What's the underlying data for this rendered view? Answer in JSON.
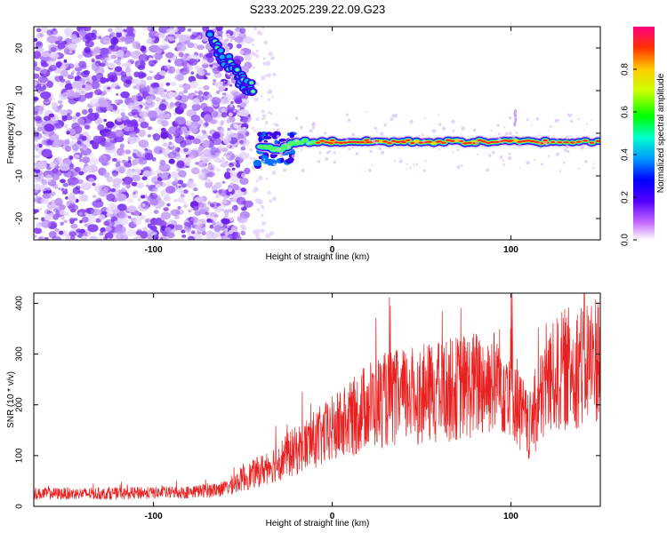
{
  "title": "S233.2025.239.22.09.G23",
  "chart_data": [
    {
      "type": "heatmap",
      "xlabel": "Height of straight line (km)",
      "ylabel": "Frequency (Hz)",
      "xlim": [
        -167,
        150
      ],
      "ylim": [
        -25,
        25
      ],
      "xticks": [
        -100,
        0,
        100
      ],
      "yticks": [
        20,
        10,
        0,
        -10,
        -20
      ],
      "colorbar": {
        "label": "Normalized spectral amplitude",
        "range": [
          0,
          1
        ],
        "ticks": [
          "0.0",
          "0.2",
          "0.4",
          "0.6",
          "0.8"
        ],
        "tick_values": [
          0,
          0.2,
          0.4,
          0.6,
          0.8
        ]
      },
      "features": {
        "noise_region_x": [
          -167,
          -55
        ],
        "diagonal_track": [
          [
            -68,
            23
          ],
          [
            -62,
            18
          ],
          [
            -55,
            15
          ],
          [
            -50,
            12
          ],
          [
            -44,
            10
          ]
        ],
        "main_track": [
          [
            -40,
            -3
          ],
          [
            -30,
            -4
          ],
          [
            -20,
            -2
          ],
          [
            0,
            -2
          ],
          [
            20,
            -2
          ],
          [
            40,
            -2
          ],
          [
            60,
            -2
          ],
          [
            80,
            -2
          ],
          [
            100,
            -2
          ],
          [
            120,
            -2
          ],
          [
            150,
            -2
          ]
        ]
      }
    },
    {
      "type": "line",
      "xlabel": "Height of straight line (km)",
      "ylabel": "SNR (10 * v/v)",
      "xlim": [
        -167,
        150
      ],
      "ylim": [
        0,
        420
      ],
      "xticks": [
        -100,
        0,
        100
      ],
      "yticks": [
        0,
        100,
        200,
        300,
        400
      ],
      "series": [
        {
          "name": "SNR",
          "color": "#e82020",
          "envelope": [
            [
              -167,
              25
            ],
            [
              -120,
              25
            ],
            [
              -80,
              28
            ],
            [
              -60,
              35
            ],
            [
              -50,
              55
            ],
            [
              -40,
              70
            ],
            [
              -30,
              90
            ],
            [
              -20,
              110
            ],
            [
              -10,
              130
            ],
            [
              0,
              150
            ],
            [
              10,
              170
            ],
            [
              20,
              200
            ],
            [
              30,
              210
            ],
            [
              40,
              215
            ],
            [
              60,
              225
            ],
            [
              80,
              240
            ],
            [
              90,
              245
            ],
            [
              100,
              250
            ],
            [
              105,
              190
            ],
            [
              110,
              150
            ],
            [
              120,
              240
            ],
            [
              130,
              270
            ],
            [
              140,
              280
            ],
            [
              150,
              300
            ]
          ]
        }
      ]
    }
  ],
  "colors": {
    "noise": "#7b2ff7",
    "track": "#ff2020",
    "line": "#e82020"
  }
}
